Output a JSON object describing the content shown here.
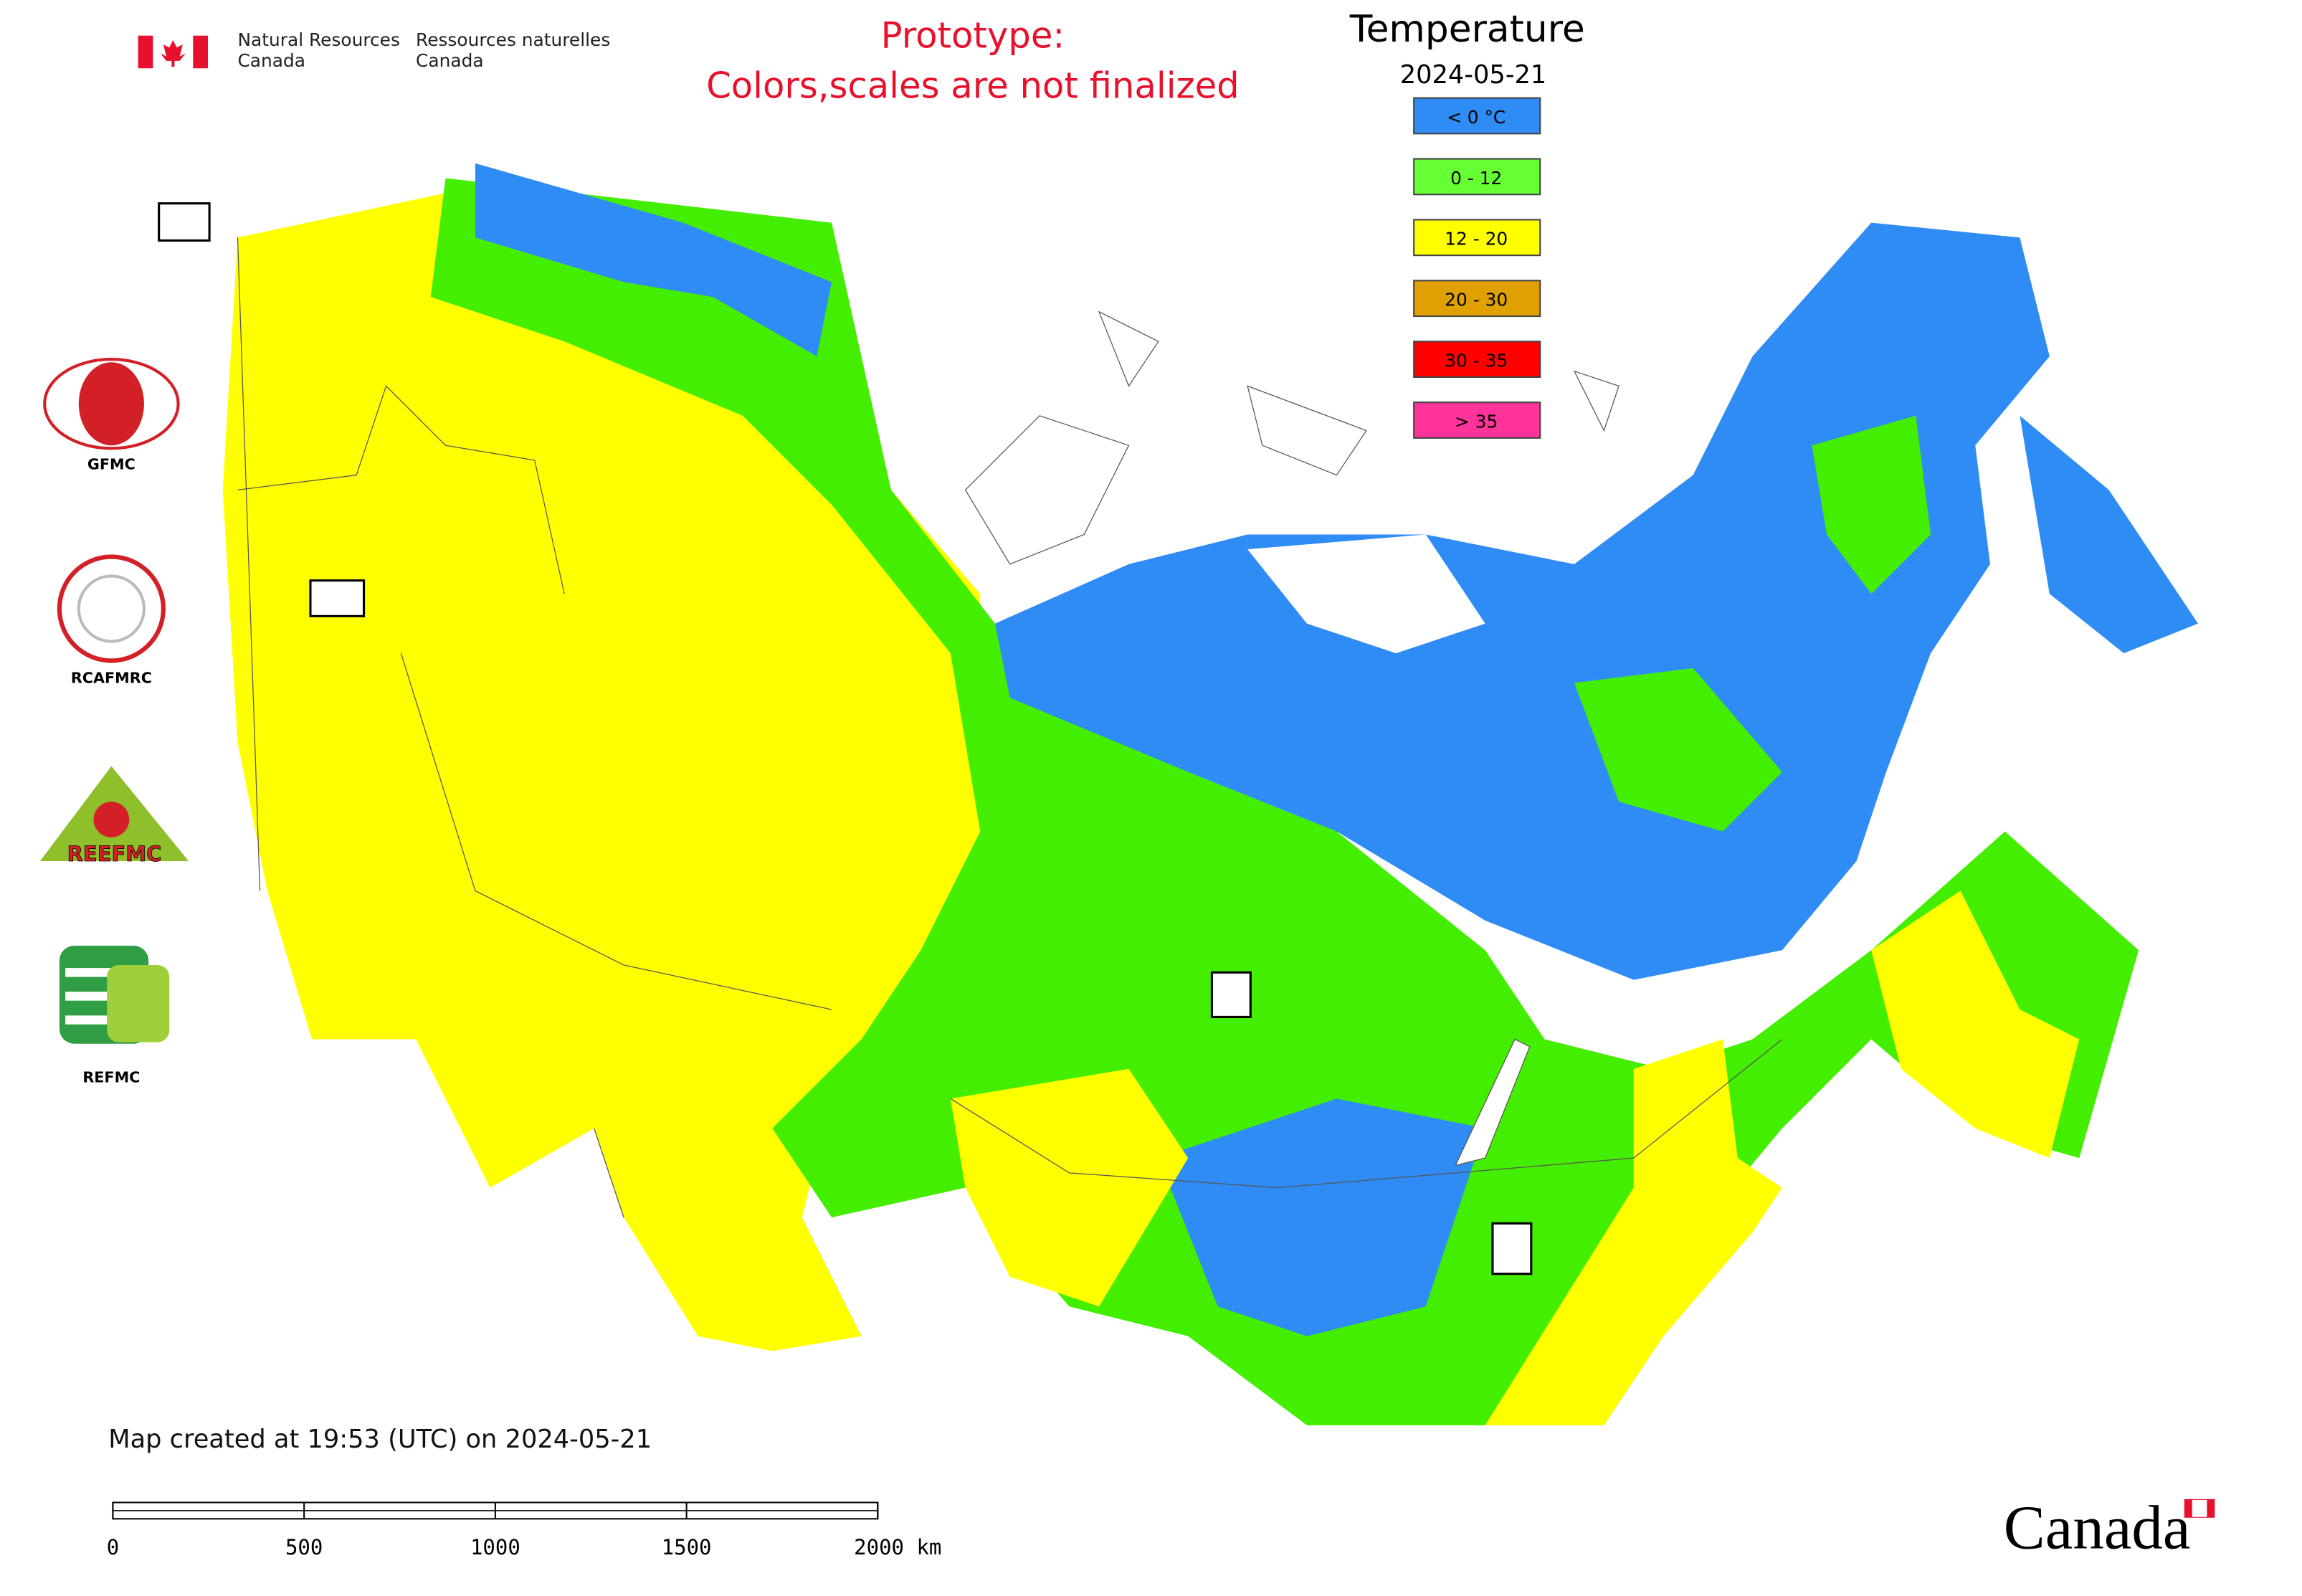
{
  "header": {
    "department_en": "Natural Resources Canada",
    "department_fr": "Ressources naturelles Canada"
  },
  "notice": {
    "line1": "Prototype:",
    "line2": "Colors,scales are not finalized"
  },
  "legend": {
    "title": "Temperature",
    "date": "2024-05-21",
    "items": [
      {
        "label": "< 0 °C",
        "color": "#2f8cf5"
      },
      {
        "label": "0 - 12",
        "color": "#66ff33"
      },
      {
        "label": "12 - 20",
        "color": "#ffff00"
      },
      {
        "label": "20 - 30",
        "color": "#e0a000"
      },
      {
        "label": "30 - 35",
        "color": "#ff0000"
      },
      {
        "label": "> 35",
        "color": "#ff3399"
      }
    ]
  },
  "logos": [
    "GFMC",
    "RCAFMRC",
    "REEFMC",
    "REFMC"
  ],
  "footer": {
    "created": "Map created at 19:53 (UTC) on 2024-05-21",
    "wordmark": "Canada"
  },
  "scale_bar": {
    "labels": [
      "0",
      "500",
      "1000",
      "1500",
      "2000 km"
    ]
  }
}
